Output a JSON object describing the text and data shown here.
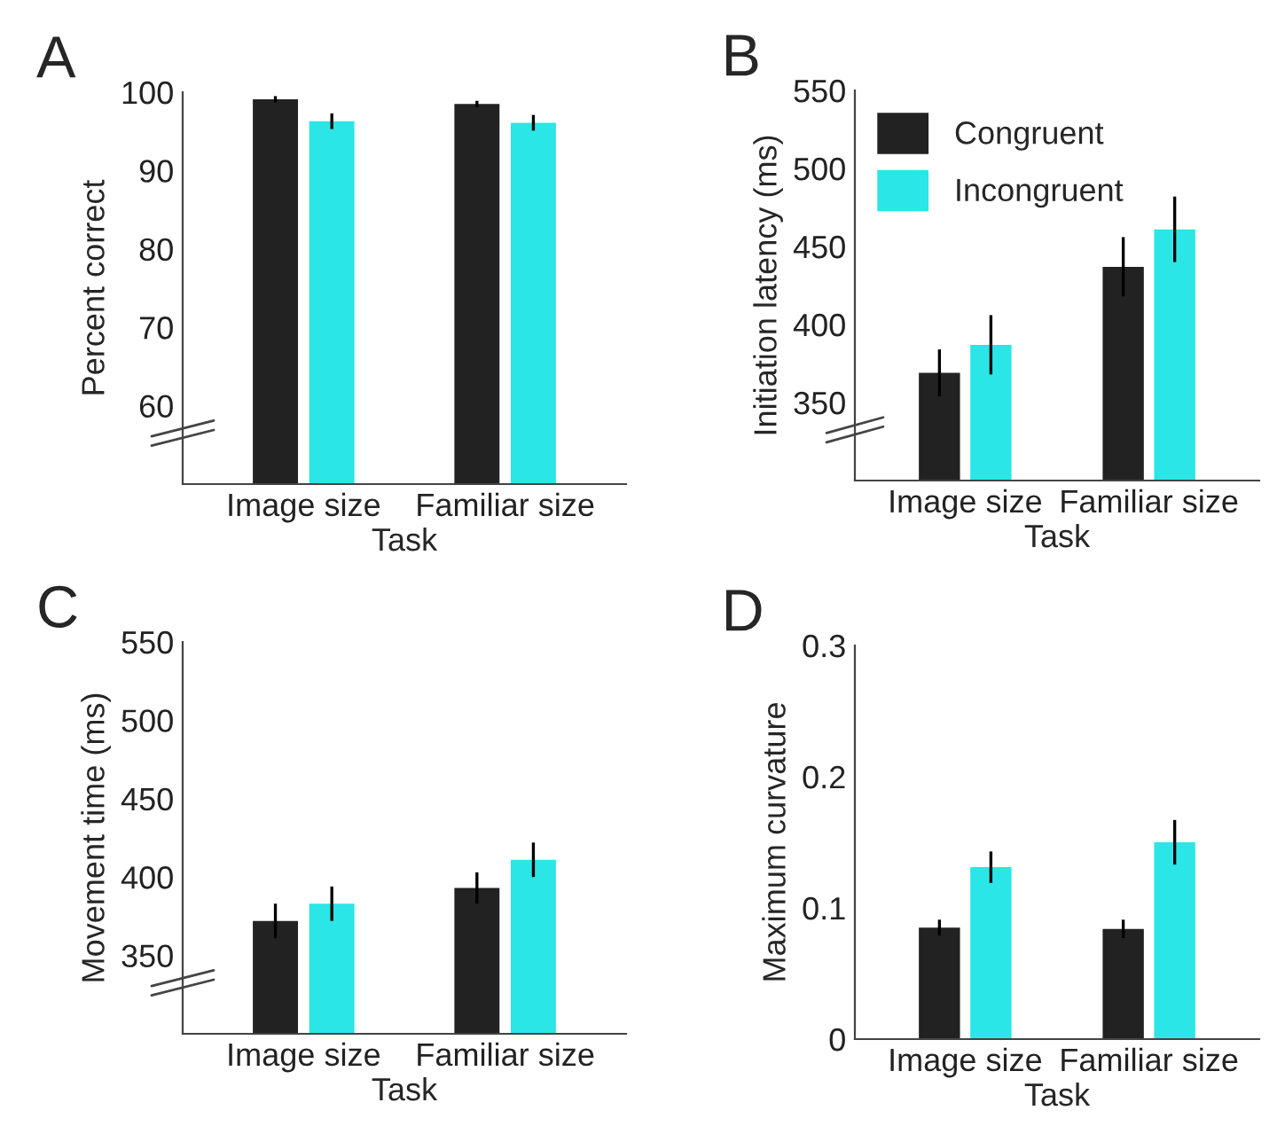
{
  "chart_data": [
    {
      "type": "bar",
      "title": "A",
      "xlabel": "Task",
      "ylabel": "Percent correct",
      "categories": [
        "Image size",
        "Familiar size"
      ],
      "ylim": [
        50,
        100
      ],
      "yticks": [
        60,
        70,
        80,
        90,
        100
      ],
      "legend": false,
      "series": [
        {
          "color": "#222222",
          "values": [
            99.1,
            98.5
          ],
          "errors": [
            0.4,
            0.4
          ]
        },
        {
          "color": "#2ae6e6",
          "values": [
            96.3,
            96.1
          ],
          "errors": [
            1,
            1
          ]
        }
      ]
    },
    {
      "type": "bar",
      "title": "B",
      "xlabel": "Task",
      "ylabel": "Initiation latency (ms)",
      "categories": [
        "Image size",
        "Familiar size"
      ],
      "ylim": [
        300,
        550
      ],
      "yticks": [
        350,
        400,
        450,
        500,
        550
      ],
      "legend": "top left",
      "series": [
        {
          "name": "Congruent",
          "color": "#222222",
          "values": [
            369,
            437
          ],
          "errors": [
            15,
            19
          ]
        },
        {
          "name": "Incongruent",
          "color": "#2ae6e6",
          "values": [
            387,
            461
          ],
          "errors": [
            19,
            21
          ]
        }
      ]
    },
    {
      "type": "bar",
      "title": "C",
      "xlabel": "Task",
      "ylabel": "Movement time (ms)",
      "categories": [
        "Image size",
        "Familiar size"
      ],
      "ylim": [
        300,
        550
      ],
      "yticks": [
        350,
        400,
        450,
        500,
        550
      ],
      "legend": false,
      "series": [
        {
          "color": "#222222",
          "values": [
            372,
            393
          ],
          "errors": [
            11,
            10
          ]
        },
        {
          "color": "#2ae6e6",
          "values": [
            383,
            411
          ],
          "errors": [
            11,
            11
          ]
        }
      ]
    },
    {
      "type": "bar",
      "title": "D",
      "xlabel": "Task",
      "ylabel": "Maximum curvature",
      "categories": [
        "Image size",
        "Familiar size"
      ],
      "ylim": [
        0,
        0.3
      ],
      "yticks": [
        0,
        0.1,
        0.2,
        0.3
      ],
      "legend": false,
      "series": [
        {
          "color": "#222222",
          "values": [
            0.085,
            0.084
          ],
          "errors": [
            0.006,
            0.007
          ]
        },
        {
          "color": "#2ae6e6",
          "values": [
            0.131,
            0.15
          ],
          "errors": [
            0.012,
            0.017
          ]
        }
      ]
    }
  ]
}
